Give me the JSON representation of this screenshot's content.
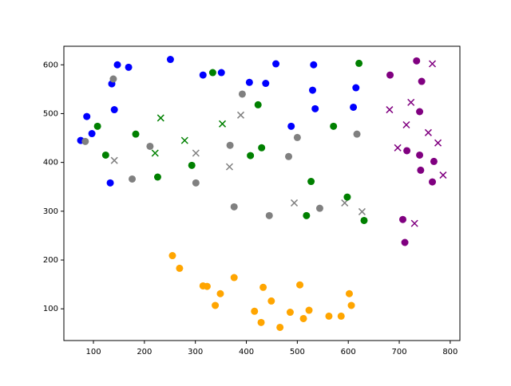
{
  "chart_data": {
    "type": "scatter",
    "xlim": [
      42,
      819
    ],
    "ylim": [
      35,
      638
    ],
    "xticks": [
      100,
      200,
      300,
      400,
      500,
      600,
      700,
      800
    ],
    "yticks": [
      100,
      200,
      300,
      400,
      500,
      600
    ],
    "series": [
      {
        "color": "#0000ff",
        "marker": "circle",
        "x": [
          147,
          169,
          251,
          136,
          141,
          87,
          97,
          75,
          133,
          315,
          351,
          406,
          438,
          458,
          532,
          530,
          535,
          488,
          615,
          610
        ],
        "values": [
          600,
          595,
          611,
          561,
          508,
          494,
          459,
          445,
          358,
          579,
          584,
          564,
          562,
          602,
          600,
          548,
          510,
          474,
          553,
          513
        ]
      },
      {
        "color": "#808080",
        "marker": "circle",
        "x": [
          139,
          84,
          211,
          176,
          301,
          368,
          392,
          376,
          445,
          500,
          483,
          544,
          617
        ],
        "values": [
          571,
          443,
          433,
          366,
          358,
          435,
          540,
          309,
          291,
          451,
          412,
          306,
          458
        ]
      },
      {
        "color": "#808080",
        "marker": "x",
        "x": [
          141,
          301,
          389,
          367,
          494,
          593,
          627
        ],
        "values": [
          404,
          419,
          497,
          391,
          317,
          317,
          299
        ]
      },
      {
        "color": "#008000",
        "marker": "circle",
        "x": [
          108,
          124,
          183,
          226,
          293,
          334,
          423,
          430,
          408,
          527,
          518,
          571,
          621,
          598,
          631
        ],
        "values": [
          474,
          415,
          458,
          370,
          394,
          584,
          518,
          430,
          414,
          361,
          291,
          474,
          603,
          329,
          281
        ]
      },
      {
        "color": "#008000",
        "marker": "x",
        "x": [
          232,
          221,
          279,
          353
        ],
        "values": [
          491,
          419,
          445,
          479
        ]
      },
      {
        "color": "#ffa500",
        "marker": "circle",
        "x": [
          255,
          269,
          315,
          323,
          349,
          339,
          376,
          433,
          449,
          416,
          429,
          466,
          486,
          505,
          523,
          512,
          562,
          586,
          602,
          606
        ],
        "values": [
          209,
          183,
          147,
          146,
          131,
          107,
          164,
          144,
          116,
          95,
          72,
          62,
          93,
          149,
          97,
          80,
          85,
          85,
          131,
          107
        ]
      },
      {
        "color": "#800080",
        "marker": "circle",
        "x": [
          682,
          734,
          744,
          740,
          715,
          740,
          768,
          742,
          765,
          707,
          711
        ],
        "values": [
          579,
          608,
          566,
          504,
          424,
          415,
          402,
          384,
          360,
          283,
          236
        ]
      },
      {
        "color": "#800080",
        "marker": "x",
        "x": [
          765,
          681,
          723,
          714,
          697,
          757,
          776,
          786,
          730
        ],
        "values": [
          602,
          508,
          523,
          477,
          430,
          461,
          440,
          374,
          275
        ]
      }
    ]
  }
}
